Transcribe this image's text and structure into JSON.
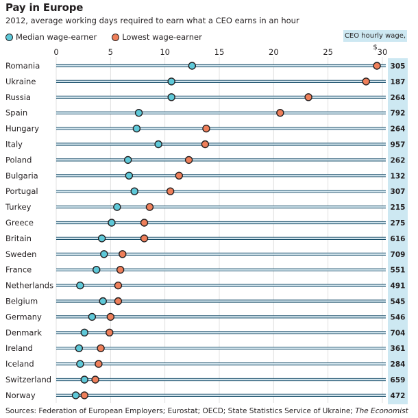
{
  "title": "Pay in Europe",
  "subtitle": "2012, average working days required to earn what a CEO earns in an hour",
  "legend": {
    "median": "Median wage-earner",
    "lowest": "Lowest wage-earner"
  },
  "ceo_header": "CEO hourly wage, $",
  "source_prefix": "Sources: Federation of European Employers; Eurostat; OECD; State Statistics Service of Ukraine; ",
  "source_italic": "The Economist",
  "colors": {
    "median": "#5ec8d8",
    "lowest": "#ee7f5a",
    "ceo_bg": "#cde8f2",
    "row_line": "#1a4f6b"
  },
  "chart_data": {
    "type": "dot-range",
    "title": "Pay in Europe",
    "xlim": [
      0,
      30
    ],
    "xticks": [
      "0",
      "5",
      "10",
      "15",
      "20",
      "25",
      "30"
    ],
    "series": [
      {
        "name": "Median wage-earner"
      },
      {
        "name": "Lowest wage-earner"
      }
    ],
    "rows": [
      {
        "country": "Romania",
        "median": 12.5,
        "lowest": 29.5,
        "ceo": "305"
      },
      {
        "country": "Ukraine",
        "median": 10.6,
        "lowest": 28.5,
        "ceo": "187"
      },
      {
        "country": "Russia",
        "median": 10.6,
        "lowest": 23.2,
        "ceo": "264"
      },
      {
        "country": "Spain",
        "median": 7.6,
        "lowest": 20.6,
        "ceo": "792"
      },
      {
        "country": "Hungary",
        "median": 7.4,
        "lowest": 13.8,
        "ceo": "264"
      },
      {
        "country": "Italy",
        "median": 9.4,
        "lowest": 13.7,
        "ceo": "957"
      },
      {
        "country": "Poland",
        "median": 6.6,
        "lowest": 12.2,
        "ceo": "262"
      },
      {
        "country": "Bulgaria",
        "median": 6.7,
        "lowest": 11.3,
        "ceo": "132"
      },
      {
        "country": "Portugal",
        "median": 7.2,
        "lowest": 10.5,
        "ceo": "307"
      },
      {
        "country": "Turkey",
        "median": 5.6,
        "lowest": 8.6,
        "ceo": "215"
      },
      {
        "country": "Greece",
        "median": 5.1,
        "lowest": 8.1,
        "ceo": "275"
      },
      {
        "country": "Britain",
        "median": 4.2,
        "lowest": 8.1,
        "ceo": "616"
      },
      {
        "country": "Sweden",
        "median": 4.4,
        "lowest": 6.1,
        "ceo": "709"
      },
      {
        "country": "France",
        "median": 3.7,
        "lowest": 5.9,
        "ceo": "551"
      },
      {
        "country": "Netherlands",
        "median": 2.2,
        "lowest": 5.7,
        "ceo": "491"
      },
      {
        "country": "Belgium",
        "median": 4.3,
        "lowest": 5.7,
        "ceo": "545"
      },
      {
        "country": "Germany",
        "median": 3.3,
        "lowest": 5.0,
        "ceo": "546"
      },
      {
        "country": "Denmark",
        "median": 2.6,
        "lowest": 4.9,
        "ceo": "704"
      },
      {
        "country": "Ireland",
        "median": 2.1,
        "lowest": 4.1,
        "ceo": "361"
      },
      {
        "country": "Iceland",
        "median": 2.2,
        "lowest": 3.9,
        "ceo": "284"
      },
      {
        "country": "Switzerland",
        "median": 2.6,
        "lowest": 3.6,
        "ceo": "659"
      },
      {
        "country": "Norway",
        "median": 1.8,
        "lowest": 2.6,
        "ceo": "472"
      }
    ]
  }
}
